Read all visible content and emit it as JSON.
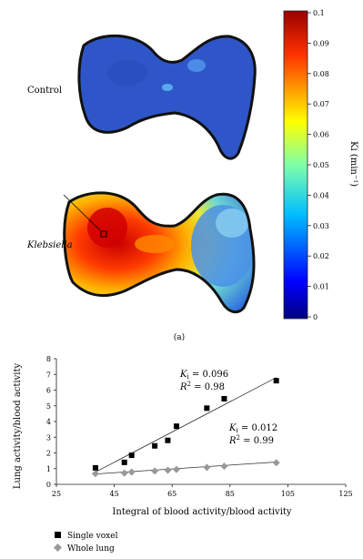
{
  "figure": {
    "panel_a": {
      "label": "(a)",
      "row_labels": [
        "Control",
        "Klebsiella"
      ],
      "colorbar": {
        "ticks": [
          "0.1",
          "0.09",
          "0.08",
          "0.07",
          "0.06",
          "0.05",
          "0.04",
          "0.03",
          "0.02",
          "0.01",
          "0"
        ],
        "label": "Ki (min⁻¹)"
      }
    }
  },
  "chart_data": {
    "type": "scatter",
    "xlabel": "Integral of blood activity/blood activity",
    "ylabel": "Lung activity/blood activity",
    "xlim": [
      25,
      125
    ],
    "ylim": [
      0,
      8
    ],
    "xticks": [
      25,
      45,
      65,
      85,
      105,
      125
    ],
    "yticks": [
      0,
      1,
      2,
      3,
      4,
      5,
      6,
      7,
      8
    ],
    "legend_position": "bottom-left",
    "series": [
      {
        "name": "Single voxel",
        "marker": "square",
        "color": "#000000",
        "points": [
          [
            38.5,
            1.05
          ],
          [
            48.5,
            1.4
          ],
          [
            51,
            1.85
          ],
          [
            59,
            2.45
          ],
          [
            63.5,
            2.8
          ],
          [
            66.5,
            3.7
          ],
          [
            77,
            4.85
          ],
          [
            83,
            5.45
          ],
          [
            101,
            6.6
          ]
        ],
        "fit": {
          "x": [
            38.5,
            101
          ],
          "y": [
            0.78,
            6.8
          ]
        },
        "annotation": {
          "k": "0.096",
          "r2": "0.98"
        }
      },
      {
        "name": "Whole lung",
        "marker": "diamond",
        "color": "#999999",
        "points": [
          [
            38.5,
            0.68
          ],
          [
            48.5,
            0.72
          ],
          [
            51,
            0.78
          ],
          [
            59,
            0.85
          ],
          [
            63.5,
            0.9
          ],
          [
            66.5,
            0.95
          ],
          [
            77,
            1.08
          ],
          [
            83,
            1.15
          ],
          [
            101,
            1.38
          ]
        ],
        "fit": {
          "x": [
            38.5,
            101
          ],
          "y": [
            0.66,
            1.42
          ]
        },
        "annotation": {
          "k": "0.012",
          "r2": "0.99"
        }
      }
    ]
  }
}
